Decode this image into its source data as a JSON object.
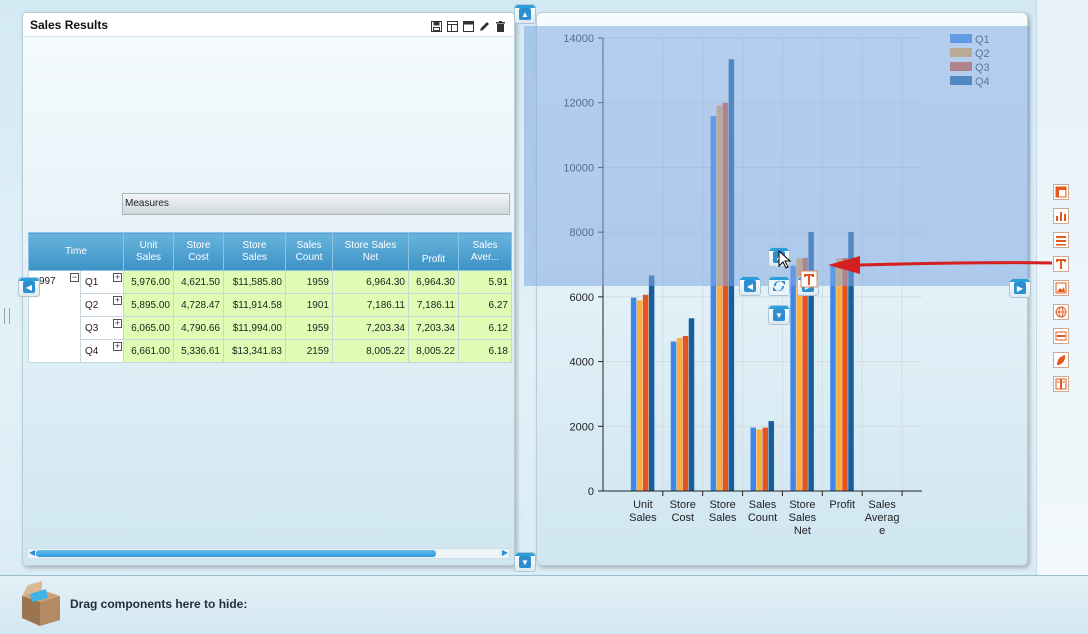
{
  "left_panel": {
    "title": "Sales Results",
    "measures_header": "Measures",
    "columns": [
      {
        "label": "Time"
      },
      {
        "label": "Unit\nSales"
      },
      {
        "label": "Store\nCost"
      },
      {
        "label": "Store\nSales"
      },
      {
        "label": "Sales\nCount"
      },
      {
        "label": "Store Sales\nNet"
      },
      {
        "label": "Profit"
      },
      {
        "label": "Sales\nAver..."
      }
    ],
    "year_label": "997",
    "rows": [
      {
        "quarter": "Q1",
        "values": [
          "5,976.00",
          "4,621.50",
          "$11,585.80",
          "1959",
          "6,964.30",
          "6,964.30",
          "5.91"
        ]
      },
      {
        "quarter": "Q2",
        "values": [
          "5,895.00",
          "4,728.47",
          "$11,914.58",
          "1901",
          "7,186.11",
          "7,186.11",
          "6.27"
        ]
      },
      {
        "quarter": "Q3",
        "values": [
          "6,065.00",
          "4,790.66",
          "$11,994.00",
          "1959",
          "7,203.34",
          "7,203.34",
          "6.12"
        ]
      },
      {
        "quarter": "Q4",
        "values": [
          "6,661.00",
          "5,336.61",
          "$13,341.83",
          "2159",
          "8,005.22",
          "8,005.22",
          "6.18"
        ]
      }
    ]
  },
  "chart_data": {
    "type": "bar",
    "categories": [
      "Unit\nSales",
      "Store\nCost",
      "Store\nSales",
      "Sales\nCount",
      "Store\nSales\nNet",
      "Profit",
      "Sales\nAverag\ne"
    ],
    "series": [
      {
        "name": "Q1",
        "values": [
          5976,
          4621.5,
          11585.8,
          1959,
          6964.3,
          6964.3,
          5.91
        ]
      },
      {
        "name": "Q2",
        "values": [
          5895,
          4728.47,
          11914.58,
          1901,
          7186.11,
          7186.11,
          6.27
        ]
      },
      {
        "name": "Q3",
        "values": [
          6065,
          4790.66,
          11994,
          1959,
          7203.34,
          7203.34,
          6.12
        ]
      },
      {
        "name": "Q4",
        "values": [
          6661,
          5336.61,
          13341.83,
          2159,
          8005.22,
          8005.22,
          6.18
        ]
      }
    ],
    "colors": [
      "#3f86e8",
      "#ffad3a",
      "#e4541e",
      "#175f9c"
    ],
    "ylim": [
      0,
      14000
    ],
    "yticks": [
      0,
      2000,
      4000,
      6000,
      8000,
      10000,
      12000,
      14000
    ],
    "grid": true,
    "legend": "top-right"
  },
  "bottom": {
    "hide_label": "Drag components here to hide:"
  },
  "colors": {
    "accent": "#2d9ddc",
    "arrow": "#d42020"
  }
}
